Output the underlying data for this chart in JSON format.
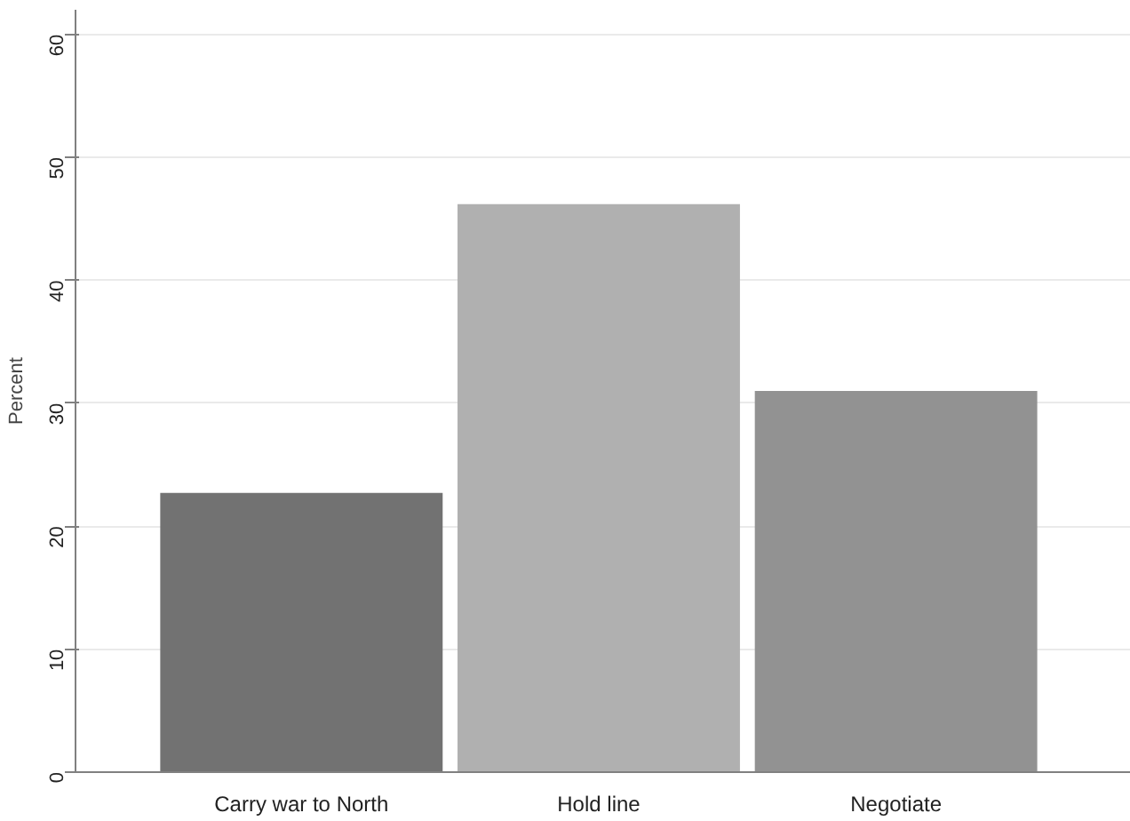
{
  "chart_data": {
    "type": "bar",
    "ylabel": "Percent",
    "categories": [
      "Carry war to North",
      "Hold line",
      "Negotiate"
    ],
    "values": [
      22.7,
      46.2,
      31.0
    ],
    "colors": [
      "#727272",
      "#b0b0b0",
      "#929292"
    ],
    "ylim": [
      0,
      62
    ],
    "yticks": [
      0,
      10,
      20,
      30,
      40,
      50,
      60
    ],
    "grid": "y"
  }
}
